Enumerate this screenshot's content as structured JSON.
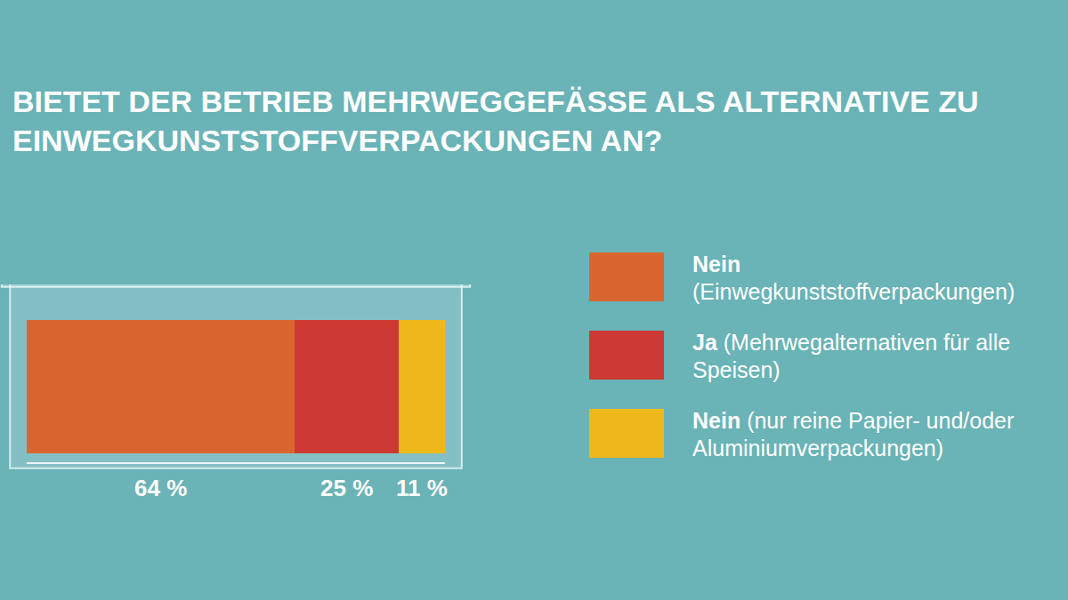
{
  "chart_data": {
    "type": "bar",
    "title": "BIETET DER BETRIEB MEHRWEGGEFÄSSE ALS ALTERNATIVE ZU EINWEGKUNSTSTOFFVERPACKUNGEN AN?",
    "orientation": "horizontal",
    "stacked": true,
    "categories": [
      null
    ],
    "series": [
      {
        "name": "Nein (Einwegkunststoffverpackungen)",
        "color": "#d9662e",
        "values": [
          64
        ],
        "value_labels": [
          "64 %"
        ]
      },
      {
        "name": "Ja (Mehrwegalternativen für alle Speisen)",
        "color": "#cc3a33",
        "values": [
          25
        ],
        "value_labels": [
          "25 %"
        ]
      },
      {
        "name": "Nein (nur reine Papier- und/oder Aluminiumverpackungen)",
        "color": "#efb81a",
        "values": [
          11
        ],
        "value_labels": [
          "11 %"
        ]
      }
    ],
    "xlim": [
      0,
      100
    ],
    "xticks": [],
    "tick_labels": false,
    "data_labels": true,
    "legend": "right",
    "grid": false
  }
}
